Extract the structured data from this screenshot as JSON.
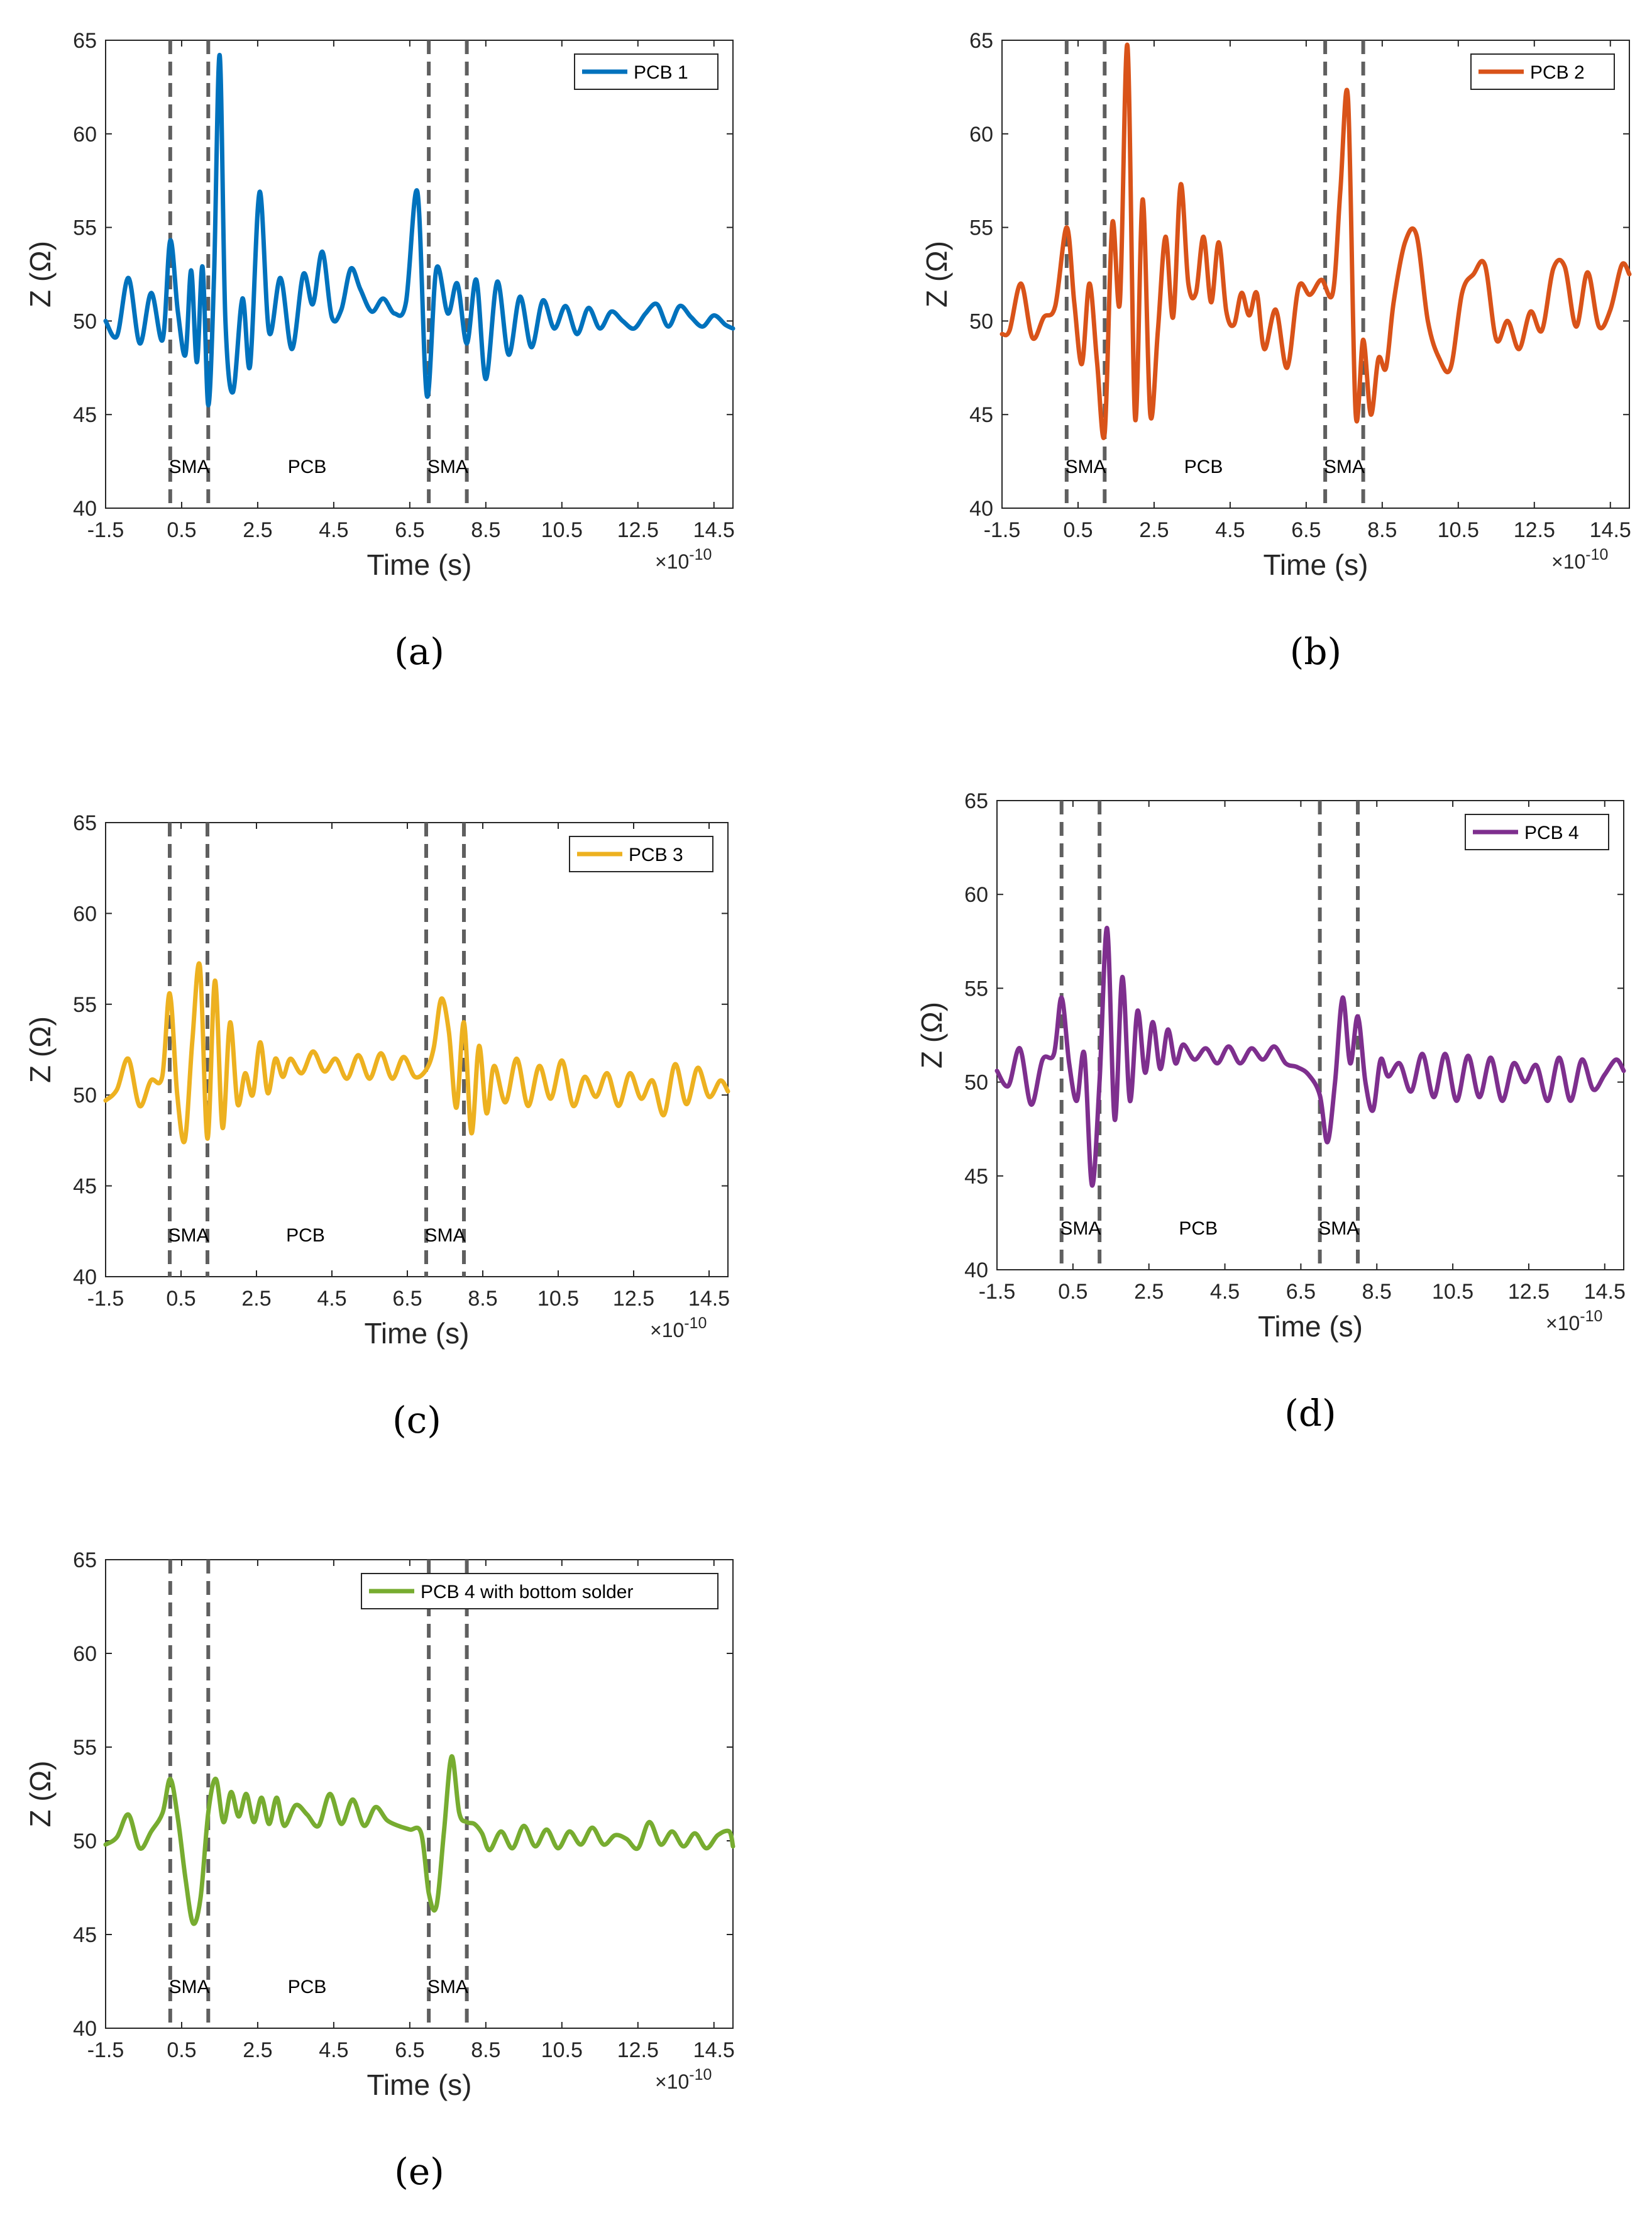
{
  "chart_data": [
    {
      "type": "line",
      "caption": "(a)",
      "legend": "PCB 1",
      "color": "#0072BD",
      "xlabel": "Time (s)",
      "ylabel": "Z (Ω)",
      "x_exponent": "×10",
      "x_exponent_power": "-10",
      "xlim": [
        -1.5,
        15
      ],
      "ylim": [
        40,
        65
      ],
      "xticks": [
        "-1.5",
        "0.5",
        "2.5",
        "4.5",
        "6.5",
        "8.5",
        "10.5",
        "12.5",
        "14.5"
      ],
      "xtick_values": [
        -1.5,
        0.5,
        2.5,
        4.5,
        6.5,
        8.5,
        10.5,
        12.5,
        14.5
      ],
      "yticks": [
        "40",
        "45",
        "50",
        "55",
        "60",
        "65"
      ],
      "ytick_values": [
        40,
        45,
        50,
        55,
        60,
        65
      ],
      "vlines": [
        0.2,
        1.2,
        7.0,
        8.0
      ],
      "annotations": [
        {
          "text": "SMA",
          "x": 0.7
        },
        {
          "text": "PCB",
          "x": 3.8
        },
        {
          "text": "SMA",
          "x": 7.5
        }
      ],
      "x": [
        -1.5,
        -1.2,
        -0.9,
        -0.6,
        -0.3,
        0.0,
        0.2,
        0.4,
        0.6,
        0.75,
        0.9,
        1.05,
        1.2,
        1.35,
        1.5,
        1.65,
        1.85,
        2.1,
        2.3,
        2.55,
        2.8,
        3.1,
        3.4,
        3.7,
        3.95,
        4.2,
        4.45,
        4.7,
        4.95,
        5.2,
        5.5,
        5.8,
        6.1,
        6.4,
        6.7,
        6.95,
        7.2,
        7.5,
        7.75,
        8.0,
        8.25,
        8.5,
        8.8,
        9.1,
        9.4,
        9.7,
        10.0,
        10.3,
        10.6,
        10.9,
        11.2,
        11.5,
        11.8,
        12.1,
        12.4,
        12.7,
        13.0,
        13.3,
        13.6,
        13.9,
        14.2,
        14.5,
        14.8,
        15.0
      ],
      "y": [
        50.0,
        49.2,
        52.3,
        48.8,
        51.5,
        49.0,
        54.3,
        50.5,
        48.2,
        52.7,
        47.8,
        52.9,
        45.5,
        52.3,
        64.2,
        50.1,
        46.2,
        51.2,
        47.6,
        56.9,
        49.4,
        52.3,
        48.5,
        52.5,
        50.9,
        53.7,
        50.2,
        50.6,
        52.8,
        51.7,
        50.5,
        51.2,
        50.4,
        51.0,
        56.9,
        46.0,
        52.8,
        50.4,
        52.0,
        48.8,
        52.2,
        46.9,
        52.1,
        48.2,
        51.3,
        48.6,
        51.1,
        49.6,
        50.8,
        49.3,
        50.7,
        49.6,
        50.5,
        50.0,
        49.6,
        50.4,
        50.9,
        49.7,
        50.8,
        50.2,
        49.7,
        50.3,
        49.8,
        49.6
      ]
    },
    {
      "type": "line",
      "caption": "(b)",
      "legend": "PCB 2",
      "color": "#D95319",
      "xlabel": "Time (s)",
      "ylabel": "Z (Ω)",
      "x_exponent": "×10",
      "x_exponent_power": "-10",
      "xlim": [
        -1.5,
        15
      ],
      "ylim": [
        40,
        65
      ],
      "xticks": [
        "-1.5",
        "0.5",
        "2.5",
        "4.5",
        "6.5",
        "8.5",
        "10.5",
        "12.5",
        "14.5"
      ],
      "xtick_values": [
        -1.5,
        0.5,
        2.5,
        4.5,
        6.5,
        8.5,
        10.5,
        12.5,
        14.5
      ],
      "yticks": [
        "40",
        "45",
        "50",
        "55",
        "60",
        "65"
      ],
      "ytick_values": [
        40,
        45,
        50,
        55,
        60,
        65
      ],
      "vlines": [
        0.2,
        1.2,
        7.0,
        8.0
      ],
      "annotations": [
        {
          "text": "SMA",
          "x": 0.7
        },
        {
          "text": "PCB",
          "x": 3.8
        },
        {
          "text": "SMA",
          "x": 7.5
        }
      ],
      "x": [
        -1.5,
        -1.3,
        -1.0,
        -0.7,
        -0.4,
        -0.1,
        0.2,
        0.4,
        0.6,
        0.8,
        1.0,
        1.2,
        1.4,
        1.6,
        1.8,
        2.0,
        2.2,
        2.4,
        2.6,
        2.8,
        3.0,
        3.2,
        3.4,
        3.6,
        3.8,
        4.0,
        4.2,
        4.4,
        4.6,
        4.8,
        5.0,
        5.2,
        5.4,
        5.7,
        6.0,
        6.3,
        6.6,
        6.9,
        7.2,
        7.4,
        7.6,
        7.8,
        8.0,
        8.2,
        8.4,
        8.6,
        8.8,
        9.1,
        9.4,
        9.7,
        10.0,
        10.3,
        10.6,
        10.9,
        11.2,
        11.5,
        11.8,
        12.1,
        12.4,
        12.7,
        13.0,
        13.3,
        13.6,
        13.9,
        14.2,
        14.5,
        14.8,
        15.0
      ],
      "y": [
        49.3,
        49.5,
        52.0,
        49.1,
        50.2,
        50.8,
        55.0,
        51.0,
        47.7,
        52.0,
        47.8,
        44.0,
        55.2,
        51.0,
        64.7,
        44.8,
        56.5,
        45.0,
        49.5,
        54.5,
        50.2,
        57.3,
        52.0,
        51.5,
        54.5,
        51.0,
        54.2,
        50.5,
        49.8,
        51.5,
        50.3,
        51.5,
        48.5,
        50.6,
        47.5,
        51.8,
        51.4,
        52.2,
        51.5,
        57.0,
        61.9,
        45.1,
        49.0,
        45.0,
        48.0,
        47.5,
        51.0,
        54.2,
        54.6,
        50.0,
        48.0,
        47.5,
        51.5,
        52.5,
        53.0,
        49.0,
        50.0,
        48.5,
        50.5,
        49.5,
        52.8,
        52.9,
        49.7,
        52.6,
        49.7,
        50.6,
        53.0,
        52.5
      ]
    },
    {
      "type": "line",
      "caption": "(c)",
      "legend": "PCB 3",
      "color": "#EDB120",
      "xlabel": "Time (s)",
      "ylabel": "Z (Ω)",
      "x_exponent": "×10",
      "x_exponent_power": "-10",
      "xlim": [
        -1.5,
        15
      ],
      "ylim": [
        40,
        65
      ],
      "xticks": [
        "-1.5",
        "0.5",
        "2.5",
        "4.5",
        "6.5",
        "8.5",
        "10.5",
        "12.5",
        "14.5"
      ],
      "xtick_values": [
        -1.5,
        0.5,
        2.5,
        4.5,
        6.5,
        8.5,
        10.5,
        12.5,
        14.5
      ],
      "yticks": [
        "40",
        "45",
        "50",
        "55",
        "60",
        "65"
      ],
      "ytick_values": [
        40,
        45,
        50,
        55,
        60,
        65
      ],
      "vlines": [
        0.2,
        1.2,
        7.0,
        8.0
      ],
      "annotations": [
        {
          "text": "SMA",
          "x": 0.7
        },
        {
          "text": "PCB",
          "x": 3.8
        },
        {
          "text": "SMA",
          "x": 7.5
        }
      ],
      "x": [
        -1.5,
        -1.2,
        -0.9,
        -0.6,
        -0.3,
        0.0,
        0.2,
        0.4,
        0.6,
        0.8,
        1.0,
        1.2,
        1.4,
        1.6,
        1.8,
        2.0,
        2.2,
        2.4,
        2.6,
        2.8,
        3.0,
        3.2,
        3.4,
        3.7,
        4.0,
        4.3,
        4.6,
        4.9,
        5.2,
        5.5,
        5.8,
        6.1,
        6.4,
        6.7,
        7.0,
        7.2,
        7.4,
        7.6,
        7.8,
        8.0,
        8.2,
        8.4,
        8.6,
        8.8,
        9.1,
        9.4,
        9.7,
        10.0,
        10.3,
        10.6,
        10.9,
        11.2,
        11.5,
        11.8,
        12.1,
        12.4,
        12.7,
        13.0,
        13.3,
        13.6,
        13.9,
        14.2,
        14.5,
        14.8,
        15.0
      ],
      "y": [
        49.7,
        50.3,
        52.0,
        49.4,
        50.8,
        51.0,
        55.6,
        50.0,
        47.5,
        53.0,
        57.1,
        47.6,
        56.3,
        48.2,
        54.0,
        49.5,
        51.2,
        50.0,
        52.9,
        50.1,
        52.0,
        51.0,
        52.0,
        51.2,
        52.4,
        51.3,
        52.0,
        50.9,
        52.2,
        50.9,
        52.3,
        50.9,
        52.1,
        51.0,
        51.4,
        52.6,
        55.3,
        53.5,
        49.3,
        54.0,
        47.9,
        52.7,
        49.0,
        51.6,
        49.6,
        52.0,
        49.4,
        51.6,
        49.8,
        51.9,
        49.4,
        51.0,
        49.9,
        51.2,
        49.4,
        51.2,
        49.8,
        50.8,
        48.9,
        51.7,
        49.5,
        51.5,
        49.9,
        50.8,
        50.2
      ]
    },
    {
      "type": "line",
      "caption": "(d)",
      "legend": "PCB 4",
      "color": "#7E2F8E",
      "xlabel": "Time (s)",
      "ylabel": "Z (Ω)",
      "x_exponent": "×10",
      "x_exponent_power": "-10",
      "xlim": [
        -1.5,
        15
      ],
      "ylim": [
        40,
        65
      ],
      "xticks": [
        "-1.5",
        "0.5",
        "2.5",
        "4.5",
        "6.5",
        "8.5",
        "10.5",
        "12.5",
        "14.5"
      ],
      "xtick_values": [
        -1.5,
        0.5,
        2.5,
        4.5,
        6.5,
        8.5,
        10.5,
        12.5,
        14.5
      ],
      "yticks": [
        "40",
        "45",
        "50",
        "55",
        "60",
        "65"
      ],
      "ytick_values": [
        40,
        45,
        50,
        55,
        60,
        65
      ],
      "vlines": [
        0.2,
        1.2,
        7.0,
        8.0
      ],
      "annotations": [
        {
          "text": "SMA",
          "x": 0.7
        },
        {
          "text": "PCB",
          "x": 3.8
        },
        {
          "text": "SMA",
          "x": 7.5
        }
      ],
      "x": [
        -1.5,
        -1.2,
        -0.9,
        -0.6,
        -0.3,
        0.0,
        0.2,
        0.4,
        0.6,
        0.8,
        1.0,
        1.2,
        1.4,
        1.6,
        1.8,
        2.0,
        2.2,
        2.4,
        2.6,
        2.8,
        3.0,
        3.2,
        3.4,
        3.7,
        4.0,
        4.3,
        4.6,
        4.9,
        5.2,
        5.5,
        5.8,
        6.1,
        6.4,
        6.7,
        7.0,
        7.2,
        7.4,
        7.6,
        7.8,
        8.0,
        8.2,
        8.4,
        8.6,
        8.8,
        9.1,
        9.4,
        9.7,
        10.0,
        10.3,
        10.6,
        10.9,
        11.2,
        11.5,
        11.8,
        12.1,
        12.4,
        12.7,
        13.0,
        13.3,
        13.6,
        13.9,
        14.2,
        14.5,
        14.8,
        15.0
      ],
      "y": [
        50.6,
        49.8,
        51.8,
        48.8,
        51.2,
        51.5,
        54.5,
        51.0,
        49.0,
        51.5,
        44.5,
        50.0,
        58.2,
        48.0,
        55.6,
        49.0,
        53.8,
        50.5,
        53.2,
        50.7,
        52.8,
        51.0,
        52.0,
        51.2,
        51.8,
        51.0,
        51.9,
        51.0,
        51.8,
        51.2,
        51.9,
        51.0,
        50.8,
        50.4,
        49.3,
        46.8,
        50.0,
        54.5,
        51.0,
        53.5,
        50.0,
        48.5,
        51.2,
        50.3,
        51.0,
        49.5,
        51.5,
        49.2,
        51.5,
        49.0,
        51.4,
        49.2,
        51.3,
        49.0,
        51.0,
        50.0,
        50.9,
        49.0,
        51.3,
        49.0,
        51.2,
        49.6,
        50.4,
        51.2,
        50.6
      ]
    },
    {
      "type": "line",
      "caption": "(e)",
      "legend": "PCB 4 with bottom solder",
      "color": "#77AC30",
      "xlabel": "Time (s)",
      "ylabel": "Z (Ω)",
      "x_exponent": "×10",
      "x_exponent_power": "-10",
      "xlim": [
        -1.5,
        15
      ],
      "ylim": [
        40,
        65
      ],
      "xticks": [
        "-1.5",
        "0.5",
        "2.5",
        "4.5",
        "6.5",
        "8.5",
        "10.5",
        "12.5",
        "14.5"
      ],
      "xtick_values": [
        -1.5,
        0.5,
        2.5,
        4.5,
        6.5,
        8.5,
        10.5,
        12.5,
        14.5
      ],
      "yticks": [
        "40",
        "45",
        "50",
        "55",
        "60",
        "65"
      ],
      "ytick_values": [
        40,
        45,
        50,
        55,
        60,
        65
      ],
      "vlines": [
        0.2,
        1.2,
        7.0,
        8.0
      ],
      "annotations": [
        {
          "text": "SMA",
          "x": 0.7
        },
        {
          "text": "PCB",
          "x": 3.8
        },
        {
          "text": "SMA",
          "x": 7.5
        }
      ],
      "x": [
        -1.5,
        -1.2,
        -0.9,
        -0.6,
        -0.3,
        0.0,
        0.2,
        0.4,
        0.6,
        0.8,
        1.0,
        1.2,
        1.4,
        1.6,
        1.8,
        2.0,
        2.2,
        2.4,
        2.6,
        2.8,
        3.0,
        3.2,
        3.5,
        3.8,
        4.1,
        4.4,
        4.7,
        5.0,
        5.3,
        5.6,
        5.9,
        6.2,
        6.5,
        6.8,
        7.0,
        7.2,
        7.4,
        7.6,
        7.8,
        8.0,
        8.2,
        8.4,
        8.6,
        8.9,
        9.2,
        9.5,
        9.8,
        10.1,
        10.4,
        10.7,
        11.0,
        11.3,
        11.6,
        11.9,
        12.2,
        12.5,
        12.8,
        13.1,
        13.4,
        13.7,
        14.0,
        14.3,
        14.6,
        14.9,
        15.0
      ],
      "y": [
        49.8,
        50.2,
        51.4,
        49.6,
        50.5,
        51.5,
        53.3,
        51.2,
        48.0,
        45.6,
        47.0,
        51.5,
        53.3,
        51.0,
        52.6,
        51.3,
        52.5,
        51.0,
        52.3,
        50.9,
        52.3,
        50.8,
        51.9,
        51.4,
        50.8,
        52.5,
        50.9,
        52.2,
        50.8,
        51.8,
        51.1,
        50.8,
        50.6,
        50.4,
        47.2,
        46.5,
        50.5,
        54.5,
        51.5,
        51.0,
        50.9,
        50.4,
        49.5,
        50.5,
        49.6,
        50.8,
        49.7,
        50.6,
        49.6,
        50.5,
        49.8,
        50.7,
        49.8,
        50.3,
        50.1,
        49.6,
        51.0,
        49.8,
        50.5,
        49.7,
        50.4,
        49.6,
        50.3,
        50.5,
        49.7
      ]
    }
  ]
}
